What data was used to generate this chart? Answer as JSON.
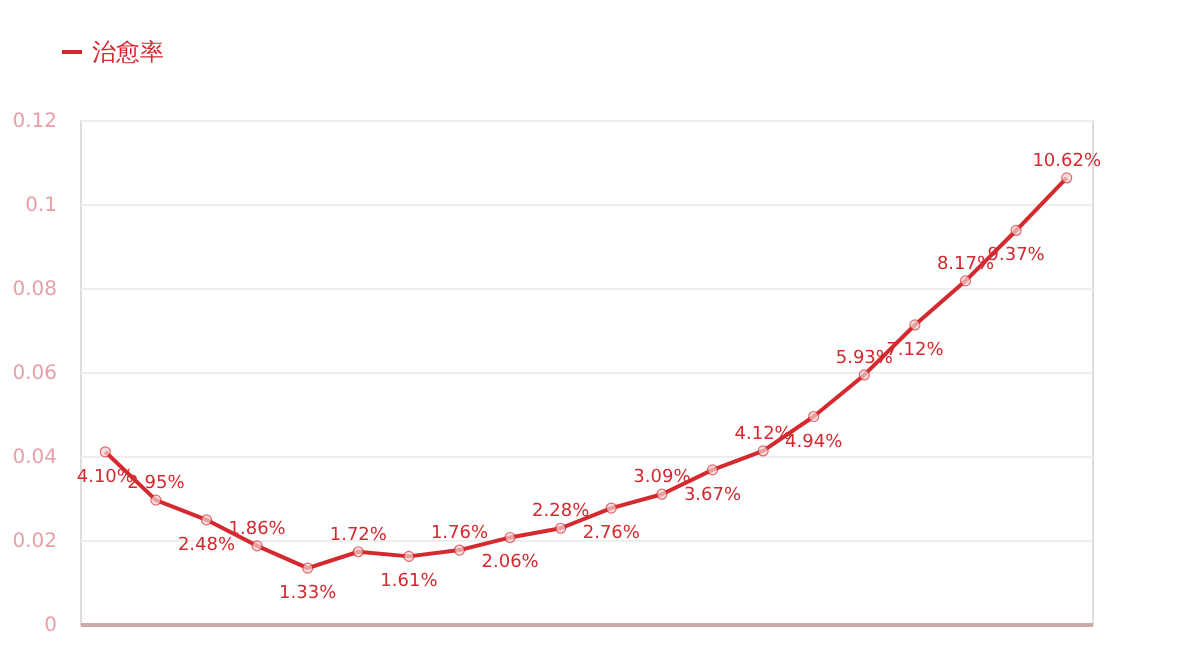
{
  "chart_data": {
    "type": "line",
    "categories": [
      null,
      null,
      null,
      null,
      null,
      null,
      null,
      null,
      null,
      null,
      null,
      null,
      null,
      null,
      null,
      null,
      null,
      null,
      null,
      null
    ],
    "series": [
      {
        "name": "治愈率",
        "color": "#d42a2f",
        "values": [
          0.041,
          0.0295,
          0.0248,
          0.0186,
          0.0133,
          0.0172,
          0.0161,
          0.0176,
          0.0206,
          0.0228,
          0.0276,
          0.0309,
          0.0367,
          0.0412,
          0.0494,
          0.0593,
          0.0712,
          0.0817,
          0.0937,
          0.1062
        ],
        "value_labels": [
          "4.10%",
          "2.95%",
          "2.48%",
          "1.86%",
          "1.33%",
          "1.72%",
          "1.61%",
          "1.76%",
          "2.06%",
          "2.28%",
          "2.76%",
          "3.09%",
          "3.67%",
          "4.12%",
          "4.94%",
          "5.93%",
          "7.12%",
          "8.17%",
          "9.37%",
          "10.62%"
        ]
      }
    ],
    "ylim": [
      0,
      0.12
    ],
    "yticks": [
      0,
      0.02,
      0.04,
      0.06,
      0.08,
      0.1,
      0.12
    ],
    "grid": "y",
    "legend": "top left",
    "marker": "circle",
    "line_style": "solid",
    "tick_labels": "y"
  }
}
